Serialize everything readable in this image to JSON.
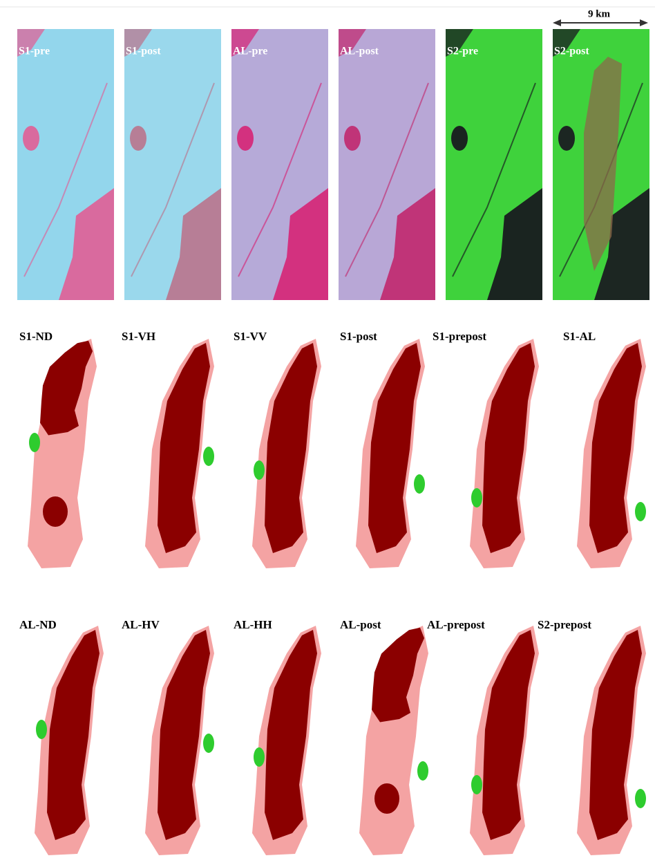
{
  "scale_bar": {
    "label": "9 km"
  },
  "rows": [
    {
      "panels": [
        {
          "label": "S1-pre"
        },
        {
          "label": "S1-post"
        },
        {
          "label": "AL-pre"
        },
        {
          "label": "AL-post"
        },
        {
          "label": "S2-pre"
        },
        {
          "label": "S2-post"
        }
      ]
    },
    {
      "panels": [
        {
          "label": "S1-ND"
        },
        {
          "label": "S1-VH"
        },
        {
          "label": "S1-VV"
        },
        {
          "label": "S1-post"
        },
        {
          "label": "S1-prepost"
        },
        {
          "label": "S1-AL"
        }
      ]
    },
    {
      "panels": [
        {
          "label": "AL-ND"
        },
        {
          "label": "AL-HV"
        },
        {
          "label": "AL-HH"
        },
        {
          "label": "AL-post"
        },
        {
          "label": "AL-prepost"
        },
        {
          "label": "S2-prepost"
        }
      ]
    }
  ]
}
